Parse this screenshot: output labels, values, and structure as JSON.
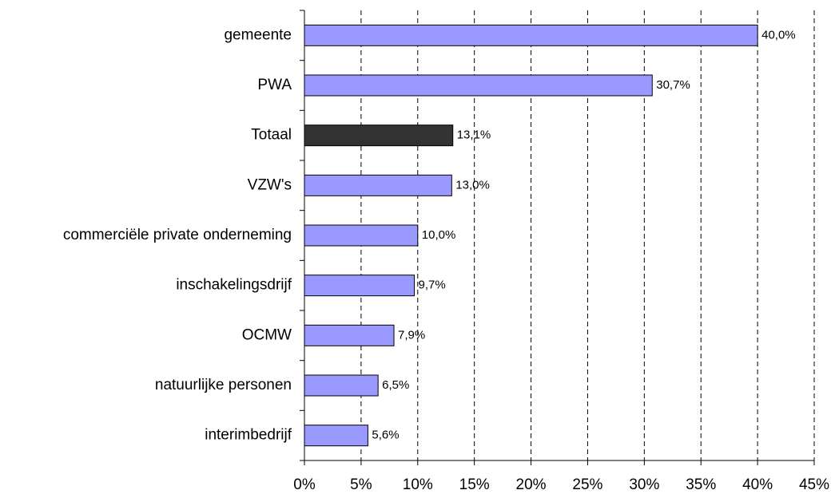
{
  "chart_data": {
    "type": "bar",
    "orientation": "horizontal",
    "categories": [
      "gemeente",
      "PWA",
      "Totaal",
      "VZW's",
      "commerciële private onderneming",
      "inschakelingsdrijf",
      "OCMW",
      "natuurlijke personen",
      "interimbedrijf"
    ],
    "values": [
      40.0,
      30.7,
      13.1,
      13.0,
      10.0,
      9.7,
      7.9,
      6.5,
      5.6
    ],
    "value_labels": [
      "40,0%",
      "30,7%",
      "13,1%",
      "13,0%",
      "10,0%",
      "9,7%",
      "7,9%",
      "6,5%",
      "5,6%"
    ],
    "colors": [
      "#9999ff",
      "#9999ff",
      "#333333",
      "#9999ff",
      "#9999ff",
      "#9999ff",
      "#9999ff",
      "#9999ff",
      "#9999ff"
    ],
    "xlim": [
      0,
      45
    ],
    "xticks": [
      {
        "value": 0,
        "label": "0%"
      },
      {
        "value": 5,
        "label": "5%"
      },
      {
        "value": 10,
        "label": "10%"
      },
      {
        "value": 15,
        "label": "15%"
      },
      {
        "value": 20,
        "label": "20%"
      },
      {
        "value": 25,
        "label": "25%"
      },
      {
        "value": 30,
        "label": "30%"
      },
      {
        "value": 35,
        "label": "35%"
      },
      {
        "value": 40,
        "label": "40%"
      },
      {
        "value": 45,
        "label": "45%"
      }
    ],
    "grid": true
  }
}
